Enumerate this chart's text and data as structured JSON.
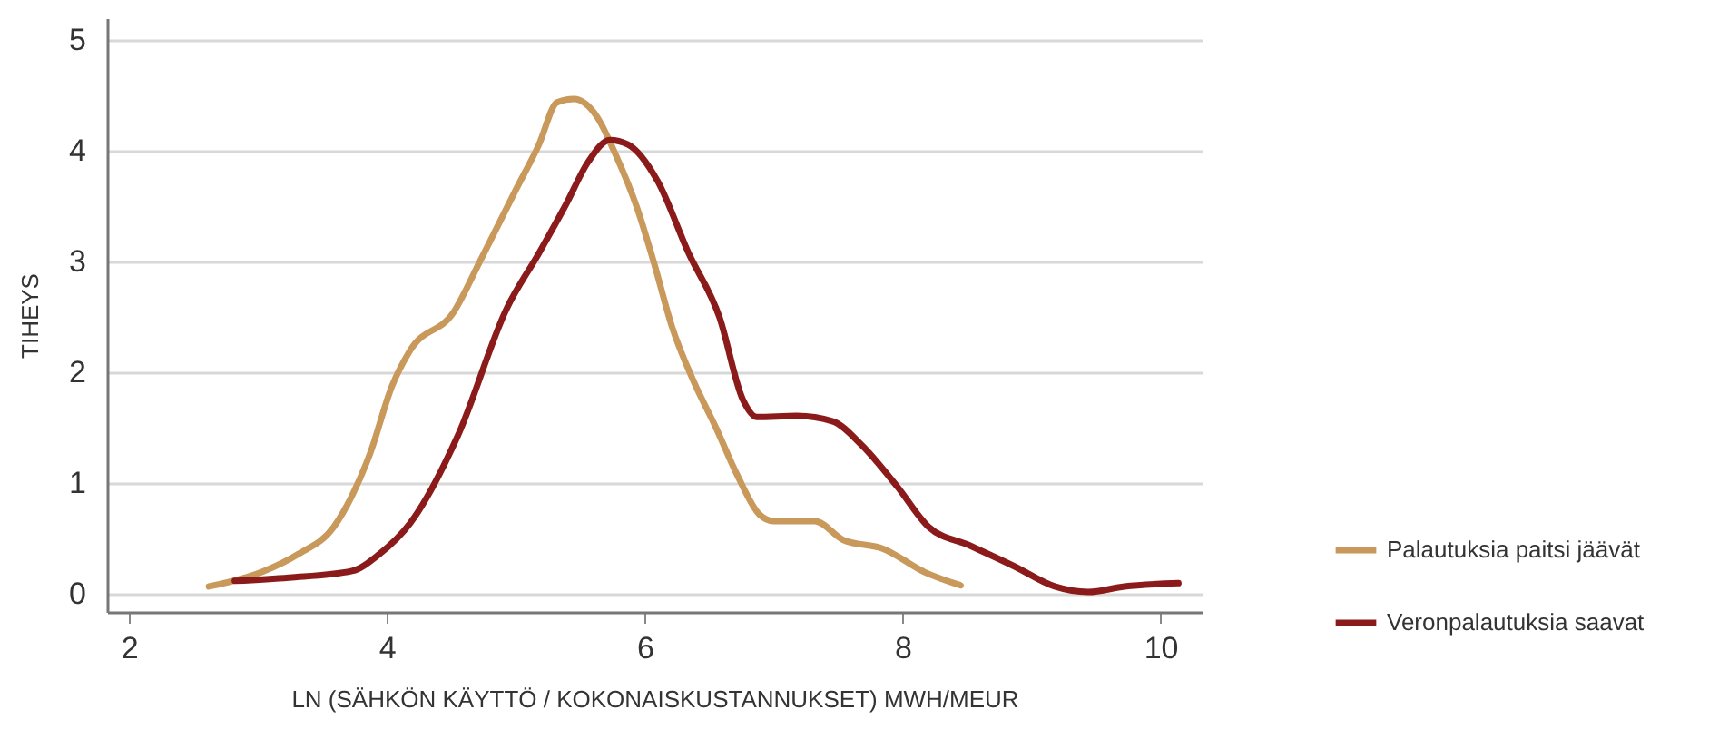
{
  "chart_data": {
    "type": "line",
    "xlabel": "LN (SÄHKÖN KÄYTTÖ / KOKONAISKUSTANNUKSET) MWH/MEUR",
    "ylabel": "TIHEYS",
    "xlim": [
      1.83,
      10.32
    ],
    "xticks": [
      2,
      4,
      6,
      8,
      10
    ],
    "ylim": [
      -0.16,
      5.2
    ],
    "yticks": [
      0,
      1,
      2,
      3,
      4,
      5
    ],
    "grid": "y",
    "legend": "right",
    "line_style": "solid",
    "series": [
      {
        "name": "Palautuksia paitsi jäävät",
        "color": "#c8995a",
        "x": [
          2.62,
          3.03,
          3.31,
          3.59,
          3.73,
          3.87,
          4.04,
          4.18,
          4.52,
          4.72,
          5.0,
          5.18,
          5.32,
          5.45,
          5.63,
          5.77,
          5.94,
          6.07,
          6.21,
          6.38,
          6.55,
          6.72,
          6.89,
          7.0,
          7.32,
          7.54,
          7.85,
          8.17,
          8.45
        ],
        "values": [
          0.07,
          0.2,
          0.36,
          0.61,
          0.89,
          1.27,
          1.88,
          2.2,
          2.55,
          3.0,
          3.65,
          4.06,
          4.44,
          4.47,
          4.31,
          3.98,
          3.49,
          3.0,
          2.42,
          1.92,
          1.51,
          1.07,
          0.72,
          0.66,
          0.66,
          0.49,
          0.41,
          0.2,
          0.08
        ]
      },
      {
        "name": "Veronpalautuksia saavat",
        "color": "#8b1a1a",
        "x": [
          2.82,
          3.24,
          3.73,
          3.94,
          4.18,
          4.55,
          4.93,
          5.18,
          5.39,
          5.56,
          5.73,
          5.87,
          6.1,
          6.34,
          6.58,
          6.76,
          6.87,
          7.18,
          7.46,
          7.68,
          7.96,
          8.2,
          8.52,
          8.87,
          9.18,
          9.44,
          9.72,
          10.14
        ],
        "values": [
          0.12,
          0.15,
          0.21,
          0.36,
          0.64,
          1.43,
          2.58,
          3.08,
          3.52,
          3.9,
          4.1,
          4.06,
          3.73,
          3.08,
          2.5,
          1.76,
          1.6,
          1.61,
          1.56,
          1.35,
          0.97,
          0.61,
          0.44,
          0.25,
          0.07,
          0.02,
          0.07,
          0.1
        ]
      }
    ]
  }
}
